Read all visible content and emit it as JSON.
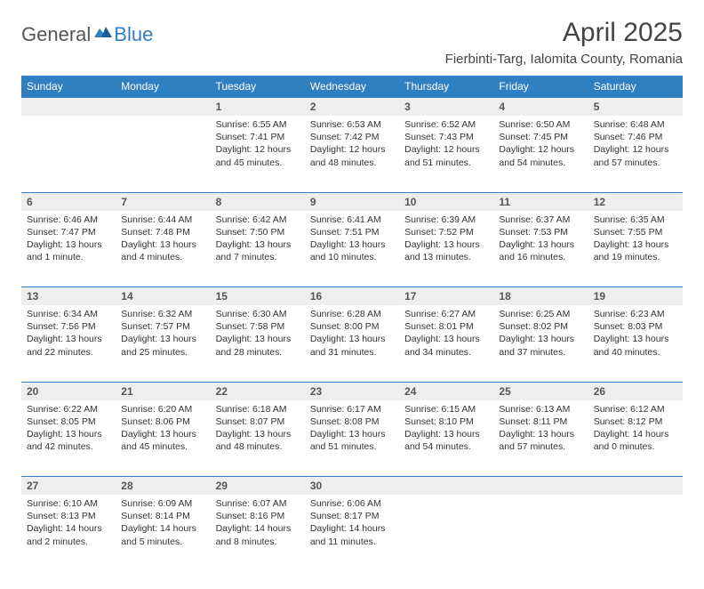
{
  "logo": {
    "part1": "General",
    "part2": "Blue"
  },
  "title": "April 2025",
  "location": "Fierbinti-Targ, Ialomita County, Romania",
  "colors": {
    "header_bg": "#2f7fc1",
    "header_text": "#ffffff",
    "daynum_bg": "#eeeeee",
    "border": "#2f7fc1",
    "text": "#333333",
    "page_bg": "#ffffff"
  },
  "day_headers": [
    "Sunday",
    "Monday",
    "Tuesday",
    "Wednesday",
    "Thursday",
    "Friday",
    "Saturday"
  ],
  "weeks": [
    [
      {
        "n": "",
        "sr": "",
        "ss": "",
        "dl": ""
      },
      {
        "n": "",
        "sr": "",
        "ss": "",
        "dl": ""
      },
      {
        "n": "1",
        "sr": "Sunrise: 6:55 AM",
        "ss": "Sunset: 7:41 PM",
        "dl": "Daylight: 12 hours and 45 minutes."
      },
      {
        "n": "2",
        "sr": "Sunrise: 6:53 AM",
        "ss": "Sunset: 7:42 PM",
        "dl": "Daylight: 12 hours and 48 minutes."
      },
      {
        "n": "3",
        "sr": "Sunrise: 6:52 AM",
        "ss": "Sunset: 7:43 PM",
        "dl": "Daylight: 12 hours and 51 minutes."
      },
      {
        "n": "4",
        "sr": "Sunrise: 6:50 AM",
        "ss": "Sunset: 7:45 PM",
        "dl": "Daylight: 12 hours and 54 minutes."
      },
      {
        "n": "5",
        "sr": "Sunrise: 6:48 AM",
        "ss": "Sunset: 7:46 PM",
        "dl": "Daylight: 12 hours and 57 minutes."
      }
    ],
    [
      {
        "n": "6",
        "sr": "Sunrise: 6:46 AM",
        "ss": "Sunset: 7:47 PM",
        "dl": "Daylight: 13 hours and 1 minute."
      },
      {
        "n": "7",
        "sr": "Sunrise: 6:44 AM",
        "ss": "Sunset: 7:48 PM",
        "dl": "Daylight: 13 hours and 4 minutes."
      },
      {
        "n": "8",
        "sr": "Sunrise: 6:42 AM",
        "ss": "Sunset: 7:50 PM",
        "dl": "Daylight: 13 hours and 7 minutes."
      },
      {
        "n": "9",
        "sr": "Sunrise: 6:41 AM",
        "ss": "Sunset: 7:51 PM",
        "dl": "Daylight: 13 hours and 10 minutes."
      },
      {
        "n": "10",
        "sr": "Sunrise: 6:39 AM",
        "ss": "Sunset: 7:52 PM",
        "dl": "Daylight: 13 hours and 13 minutes."
      },
      {
        "n": "11",
        "sr": "Sunrise: 6:37 AM",
        "ss": "Sunset: 7:53 PM",
        "dl": "Daylight: 13 hours and 16 minutes."
      },
      {
        "n": "12",
        "sr": "Sunrise: 6:35 AM",
        "ss": "Sunset: 7:55 PM",
        "dl": "Daylight: 13 hours and 19 minutes."
      }
    ],
    [
      {
        "n": "13",
        "sr": "Sunrise: 6:34 AM",
        "ss": "Sunset: 7:56 PM",
        "dl": "Daylight: 13 hours and 22 minutes."
      },
      {
        "n": "14",
        "sr": "Sunrise: 6:32 AM",
        "ss": "Sunset: 7:57 PM",
        "dl": "Daylight: 13 hours and 25 minutes."
      },
      {
        "n": "15",
        "sr": "Sunrise: 6:30 AM",
        "ss": "Sunset: 7:58 PM",
        "dl": "Daylight: 13 hours and 28 minutes."
      },
      {
        "n": "16",
        "sr": "Sunrise: 6:28 AM",
        "ss": "Sunset: 8:00 PM",
        "dl": "Daylight: 13 hours and 31 minutes."
      },
      {
        "n": "17",
        "sr": "Sunrise: 6:27 AM",
        "ss": "Sunset: 8:01 PM",
        "dl": "Daylight: 13 hours and 34 minutes."
      },
      {
        "n": "18",
        "sr": "Sunrise: 6:25 AM",
        "ss": "Sunset: 8:02 PM",
        "dl": "Daylight: 13 hours and 37 minutes."
      },
      {
        "n": "19",
        "sr": "Sunrise: 6:23 AM",
        "ss": "Sunset: 8:03 PM",
        "dl": "Daylight: 13 hours and 40 minutes."
      }
    ],
    [
      {
        "n": "20",
        "sr": "Sunrise: 6:22 AM",
        "ss": "Sunset: 8:05 PM",
        "dl": "Daylight: 13 hours and 42 minutes."
      },
      {
        "n": "21",
        "sr": "Sunrise: 6:20 AM",
        "ss": "Sunset: 8:06 PM",
        "dl": "Daylight: 13 hours and 45 minutes."
      },
      {
        "n": "22",
        "sr": "Sunrise: 6:18 AM",
        "ss": "Sunset: 8:07 PM",
        "dl": "Daylight: 13 hours and 48 minutes."
      },
      {
        "n": "23",
        "sr": "Sunrise: 6:17 AM",
        "ss": "Sunset: 8:08 PM",
        "dl": "Daylight: 13 hours and 51 minutes."
      },
      {
        "n": "24",
        "sr": "Sunrise: 6:15 AM",
        "ss": "Sunset: 8:10 PM",
        "dl": "Daylight: 13 hours and 54 minutes."
      },
      {
        "n": "25",
        "sr": "Sunrise: 6:13 AM",
        "ss": "Sunset: 8:11 PM",
        "dl": "Daylight: 13 hours and 57 minutes."
      },
      {
        "n": "26",
        "sr": "Sunrise: 6:12 AM",
        "ss": "Sunset: 8:12 PM",
        "dl": "Daylight: 14 hours and 0 minutes."
      }
    ],
    [
      {
        "n": "27",
        "sr": "Sunrise: 6:10 AM",
        "ss": "Sunset: 8:13 PM",
        "dl": "Daylight: 14 hours and 2 minutes."
      },
      {
        "n": "28",
        "sr": "Sunrise: 6:09 AM",
        "ss": "Sunset: 8:14 PM",
        "dl": "Daylight: 14 hours and 5 minutes."
      },
      {
        "n": "29",
        "sr": "Sunrise: 6:07 AM",
        "ss": "Sunset: 8:16 PM",
        "dl": "Daylight: 14 hours and 8 minutes."
      },
      {
        "n": "30",
        "sr": "Sunrise: 6:06 AM",
        "ss": "Sunset: 8:17 PM",
        "dl": "Daylight: 14 hours and 11 minutes."
      },
      {
        "n": "",
        "sr": "",
        "ss": "",
        "dl": ""
      },
      {
        "n": "",
        "sr": "",
        "ss": "",
        "dl": ""
      },
      {
        "n": "",
        "sr": "",
        "ss": "",
        "dl": ""
      }
    ]
  ]
}
